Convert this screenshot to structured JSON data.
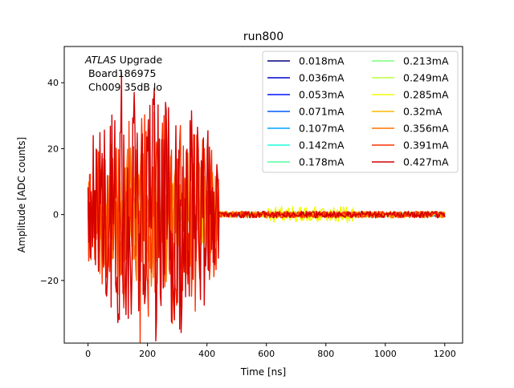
{
  "chart_data": {
    "type": "line",
    "title": "run800",
    "xlabel": "Time [ns]",
    "ylabel": "Amplitude [ADC counts]",
    "xlim": [
      -80,
      1260
    ],
    "ylim": [
      -39,
      51
    ],
    "xticks": [
      0,
      200,
      400,
      600,
      800,
      1000,
      1200
    ],
    "yticks": [
      -20,
      0,
      20,
      40
    ],
    "grid": false,
    "legend": {
      "placement": "top-right",
      "columns": 2
    },
    "annotation": {
      "italic": "ATLAS",
      "rest": " Upgrade",
      "line2": " Board186975",
      "line3": " Ch009 35dB lo"
    },
    "x_range": [
      0,
      1200
    ],
    "samples": 480,
    "burst_end": 440,
    "series": [
      {
        "name": "0.018mA",
        "color": "#00007f",
        "burst_amp": 1.5,
        "tail_amp": 0.5
      },
      {
        "name": "0.036mA",
        "color": "#0000d4",
        "burst_amp": 1.5,
        "tail_amp": 0.5
      },
      {
        "name": "0.053mA",
        "color": "#0010ff",
        "burst_amp": 1.5,
        "tail_amp": 0.5
      },
      {
        "name": "0.071mA",
        "color": "#0058ff",
        "burst_amp": 1.8,
        "tail_amp": 0.5
      },
      {
        "name": "0.107mA",
        "color": "#00a4ff",
        "burst_amp": 2.0,
        "tail_amp": 0.6
      },
      {
        "name": "0.142mA",
        "color": "#1cffdb",
        "burst_amp": 2.0,
        "tail_amp": 0.6
      },
      {
        "name": "0.178mA",
        "color": "#57ffa0",
        "burst_amp": 2.5,
        "tail_amp": 0.6
      },
      {
        "name": "0.213mA",
        "color": "#7dff7a",
        "burst_amp": 3.0,
        "tail_amp": 0.7
      },
      {
        "name": "0.249mA",
        "color": "#b8ff3f",
        "burst_amp": 3.5,
        "tail_amp": 0.8
      },
      {
        "name": "0.285mA",
        "color": "#f1fc06",
        "burst_amp": 5.0,
        "tail_amp": 2.5
      },
      {
        "name": "0.32mA",
        "color": "#ffb900",
        "burst_amp": 12.0,
        "tail_amp": 1.0
      },
      {
        "name": "0.356mA",
        "color": "#ff7300",
        "burst_amp": 22.0,
        "tail_amp": 1.0
      },
      {
        "name": "0.391mA",
        "color": "#ff3000",
        "burst_amp": 32.0,
        "tail_amp": 1.0
      },
      {
        "name": "0.427mA",
        "color": "#d40000",
        "burst_amp": 40.0,
        "tail_amp": 1.0
      }
    ]
  }
}
